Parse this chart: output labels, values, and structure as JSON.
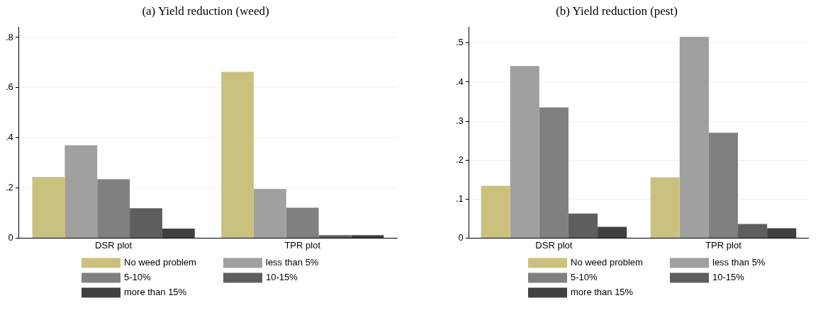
{
  "chart_data": [
    {
      "type": "bar",
      "title": "(a) Yield reduction (weed)",
      "categories": [
        "DSR plot",
        "TPR plot"
      ],
      "series": [
        {
          "name": "No weed problem",
          "color": "#cbc17f",
          "values": [
            0.244,
            0.663
          ]
        },
        {
          "name": "less than 5%",
          "color": "#a0a0a0",
          "values": [
            0.37,
            0.196
          ]
        },
        {
          "name": "5-10%",
          "color": "#808080",
          "values": [
            0.235,
            0.121
          ]
        },
        {
          "name": "10-15%",
          "color": "#5e5e5e",
          "values": [
            0.119,
            0.012
          ]
        },
        {
          "name": "more than 15%",
          "color": "#404040",
          "values": [
            0.038,
            0.012
          ]
        }
      ],
      "ylim": [
        0,
        0.84
      ],
      "yticks": [
        {
          "value": 0,
          "label": "0"
        },
        {
          "value": 0.2,
          "label": ".2"
        },
        {
          "value": 0.4,
          "label": ".4"
        },
        {
          "value": 0.6,
          "label": ".6"
        },
        {
          "value": 0.8,
          "label": ".8"
        }
      ],
      "grid": "y",
      "legend": "bottom"
    },
    {
      "type": "bar",
      "title": "(b) Yield reduction (pest)",
      "categories": [
        "DSR plot",
        "TPR plot"
      ],
      "series": [
        {
          "name": "No weed problem",
          "color": "#cbc17f",
          "values": [
            0.134,
            0.156
          ]
        },
        {
          "name": "less than 5%",
          "color": "#a0a0a0",
          "values": [
            0.441,
            0.516
          ]
        },
        {
          "name": "5-10%",
          "color": "#808080",
          "values": [
            0.335,
            0.27
          ]
        },
        {
          "name": "10-15%",
          "color": "#5e5e5e",
          "values": [
            0.063,
            0.036
          ]
        },
        {
          "name": "more than 15%",
          "color": "#404040",
          "values": [
            0.029,
            0.025
          ]
        }
      ],
      "ylim": [
        0,
        0.54
      ],
      "yticks": [
        {
          "value": 0,
          "label": "0"
        },
        {
          "value": 0.1,
          "label": ".1"
        },
        {
          "value": 0.2,
          "label": ".2"
        },
        {
          "value": 0.3,
          "label": ".3"
        },
        {
          "value": 0.4,
          "label": ".4"
        },
        {
          "value": 0.5,
          "label": ".5"
        }
      ],
      "grid": "y",
      "legend": "bottom"
    }
  ]
}
